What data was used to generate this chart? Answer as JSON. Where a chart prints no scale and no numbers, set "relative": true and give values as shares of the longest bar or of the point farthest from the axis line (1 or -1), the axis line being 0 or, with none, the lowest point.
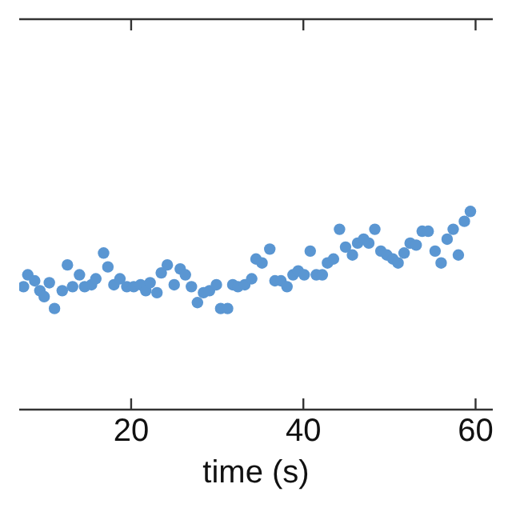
{
  "chart_data": {
    "type": "scatter",
    "xlabel": "time (s)",
    "relative": true,
    "marker": "circle",
    "grid": false,
    "xlim": [
      7,
      62
    ],
    "xticks": [
      20,
      40,
      60
    ],
    "x": [
      7.5,
      8.0,
      8.8,
      9.4,
      9.9,
      10.5,
      11.1,
      12.0,
      12.6,
      13.2,
      14.0,
      14.6,
      15.4,
      15.9,
      16.8,
      17.3,
      18.0,
      18.7,
      19.5,
      20.3,
      21.1,
      21.7,
      22.2,
      23.0,
      23.5,
      24.2,
      25.0,
      25.7,
      26.3,
      27.0,
      27.7,
      28.4,
      29.1,
      29.9,
      30.4,
      31.2,
      31.8,
      32.4,
      33.2,
      34.0,
      34.5,
      35.2,
      36.1,
      36.7,
      37.4,
      38.1,
      38.8,
      39.4,
      40.1,
      40.8,
      41.5,
      42.2,
      42.8,
      43.5,
      44.2,
      44.9,
      45.7,
      46.3,
      47.0,
      47.6,
      48.3,
      49.0,
      49.7,
      50.4,
      51.0,
      51.7,
      52.4,
      53.1,
      53.8,
      54.5,
      55.3,
      56.0,
      56.7,
      57.4,
      58.0,
      58.7,
      59.4
    ],
    "series": [
      {
        "color": "#5a96d2",
        "values": [
          0.62,
          0.68,
          0.65,
          0.6,
          0.57,
          0.64,
          0.51,
          0.6,
          0.73,
          0.62,
          0.68,
          0.62,
          0.63,
          0.66,
          0.79,
          0.72,
          0.63,
          0.66,
          0.62,
          0.62,
          0.63,
          0.6,
          0.64,
          0.59,
          0.69,
          0.73,
          0.63,
          0.71,
          0.68,
          0.62,
          0.54,
          0.59,
          0.6,
          0.63,
          0.51,
          0.51,
          0.63,
          0.62,
          0.63,
          0.66,
          0.76,
          0.74,
          0.81,
          0.65,
          0.65,
          0.62,
          0.68,
          0.7,
          0.68,
          0.8,
          0.68,
          0.68,
          0.74,
          0.76,
          0.91,
          0.82,
          0.78,
          0.84,
          0.86,
          0.84,
          0.91,
          0.8,
          0.78,
          0.76,
          0.74,
          0.79,
          0.84,
          0.83,
          0.9,
          0.9,
          0.8,
          0.74,
          0.86,
          0.91,
          0.78,
          0.95,
          1
        ]
      }
    ]
  }
}
